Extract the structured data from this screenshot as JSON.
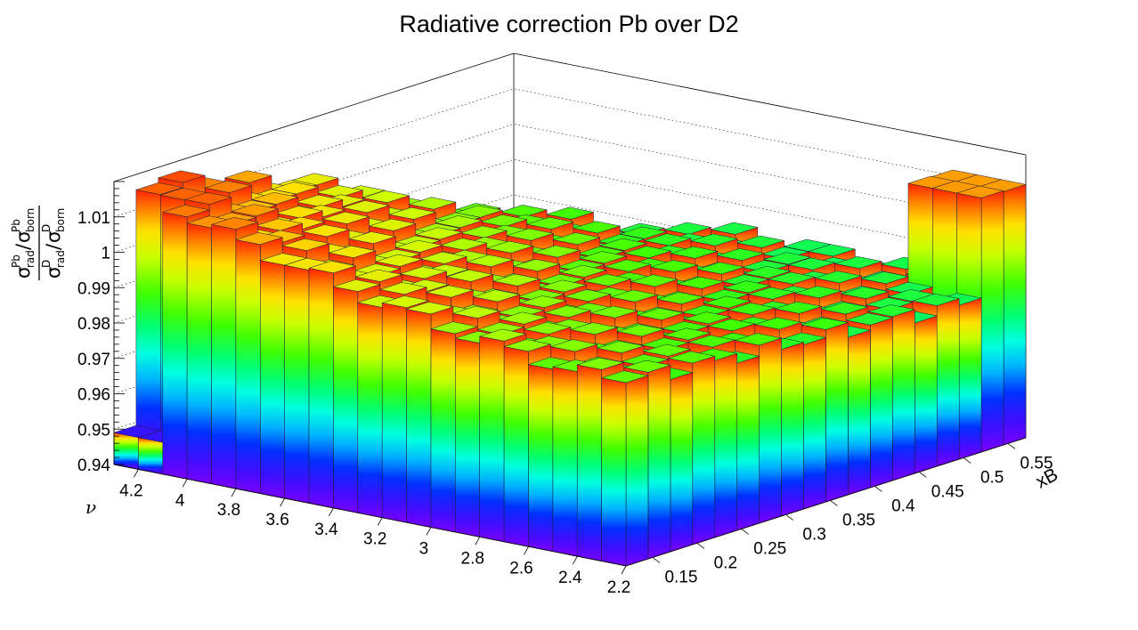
{
  "chart_data": {
    "type": "lego3d",
    "title": "Radiative correction Pb over D2",
    "xlabel": "xB",
    "ylabel_symbol": "ν",
    "zlabel": {
      "num_sigma1": "σ",
      "num_sup1": "Pb",
      "num_sub1": "rad",
      "num_slash": "/",
      "num_sigma2": "σ",
      "num_sup2": "Pb",
      "num_sub2": "born",
      "den_sigma1": "σ",
      "den_sup1": "D",
      "den_sub1": "rad",
      "den_slash": "/",
      "den_sigma2": "σ",
      "den_sup2": "D",
      "den_sub2": "born"
    },
    "x_ticks": [
      "0.15",
      "0.2",
      "0.25",
      "0.3",
      "0.35",
      "0.4",
      "0.45",
      "0.5",
      "0.55"
    ],
    "x_tick_values": [
      0.15,
      0.2,
      0.25,
      0.3,
      0.35,
      0.4,
      0.45,
      0.5,
      0.55
    ],
    "y_ticks": [
      "2.2",
      "2.4",
      "2.6",
      "2.8",
      "3",
      "3.2",
      "3.4",
      "3.6",
      "3.8",
      "4",
      "4.2"
    ],
    "y_tick_values": [
      2.2,
      2.4,
      2.6,
      2.8,
      3.0,
      3.2,
      3.4,
      3.6,
      3.8,
      4.0,
      4.2
    ],
    "z_ticks": [
      "0.94",
      "0.95",
      "0.96",
      "0.97",
      "0.98",
      "0.99",
      "1",
      "1.01"
    ],
    "z_tick_values": [
      0.94,
      0.95,
      0.96,
      0.97,
      0.98,
      0.99,
      1.0,
      1.01
    ],
    "xlim": [
      0.12,
      0.57
    ],
    "ylim": [
      2.2,
      4.3
    ],
    "zlim": [
      0.94,
      1.02
    ],
    "grid": "dotted z-grid on back walls",
    "colormap": "rainbow (violet-blue-cyan-green-yellow-red)",
    "bins": {
      "nx": 18,
      "ny": 21,
      "note": "per-bin values approximated: surface ~0.985 at high xB / low nu, rising to ~1.018 at low xB / high nu; kinematically empty corner at high xB and high nu",
      "max_value": 1.018,
      "min_value": 0.948
    }
  }
}
